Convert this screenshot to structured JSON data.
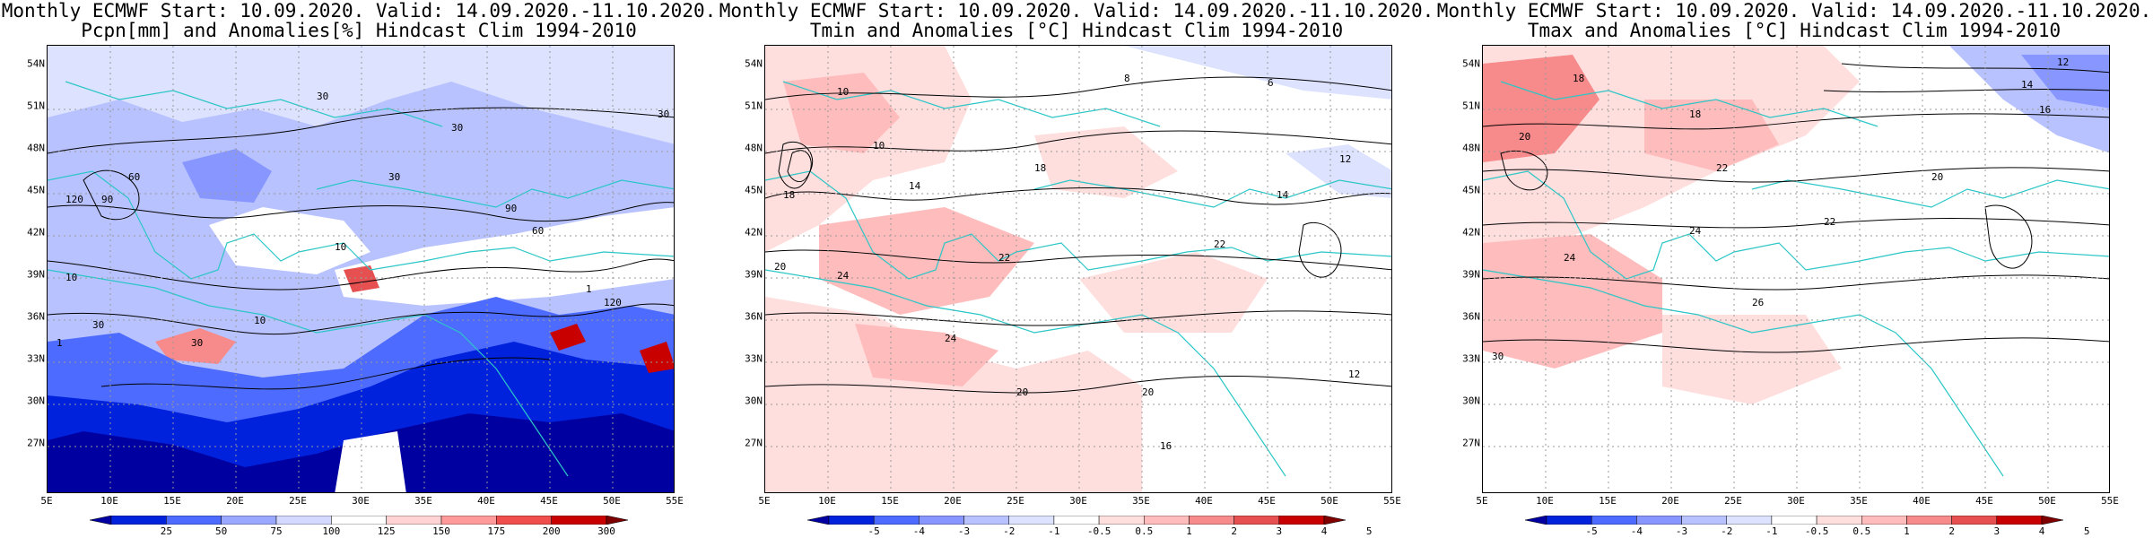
{
  "panels": [
    {
      "id": "pcpn",
      "title_line1": "Monthly ECMWF Start: 10.09.2020. Valid: 14.09.2020.-11.10.2020.",
      "title_line2": "Pcpn[mm] and Anomalies[%] Hindcast Clim 1994-2010",
      "colorbar_labels": [
        "25",
        "50",
        "75",
        "100",
        "125",
        "150",
        "175",
        "200",
        "300"
      ],
      "colorbar_colors": [
        "#0000a0",
        "#0022dd",
        "#4d6bff",
        "#9aa9ff",
        "#d3d9ff",
        "#ffffff",
        "#ffd3d3",
        "#ff9a9a",
        "#f04d4d",
        "#c80000",
        "#7d0000"
      ],
      "contour_labels": [
        "30",
        "30",
        "30",
        "60",
        "90",
        "120",
        "10",
        "1",
        "30",
        "10",
        "1",
        "90",
        "60",
        "30",
        "30",
        "10",
        "120"
      ]
    },
    {
      "id": "tmin",
      "title_line1": "Monthly ECMWF Start: 10.09.2020. Valid: 14.09.2020.-11.10.2020.",
      "title_line2": "Tmin and Anomalies [°C] Hindcast Clim 1994-2010",
      "colorbar_labels": [
        "-5",
        "-4",
        "-3",
        "-2",
        "-1",
        "-0.5",
        "0.5",
        "1",
        "2",
        "3",
        "4",
        "5"
      ],
      "colorbar_colors": [
        "#0000a0",
        "#0022dd",
        "#4d6bff",
        "#8797ff",
        "#b8c2ff",
        "#dde2ff",
        "#ffffff",
        "#ffdede",
        "#ffbcbc",
        "#f78a8a",
        "#e65050",
        "#c80000",
        "#800000"
      ],
      "contour_labels": [
        "10",
        "8",
        "6",
        "10",
        "14",
        "18",
        "12",
        "18",
        "20",
        "24",
        "22",
        "24",
        "20",
        "22",
        "20",
        "16",
        "12",
        "14"
      ]
    },
    {
      "id": "tmax",
      "title_line1": "Monthly ECMWF Start: 10.09.2020. Valid: 14.09.2020.-11.10.2020.",
      "title_line2": "Tmax and Anomalies [°C] Hindcast Clim 1994-2010",
      "colorbar_labels": [
        "-5",
        "-4",
        "-3",
        "-2",
        "-1",
        "-0.5",
        "0.5",
        "1",
        "2",
        "3",
        "4",
        "5"
      ],
      "colorbar_colors": [
        "#0000a0",
        "#0022dd",
        "#4d6bff",
        "#8797ff",
        "#b8c2ff",
        "#dde2ff",
        "#ffffff",
        "#ffdede",
        "#ffbcbc",
        "#f78a8a",
        "#e65050",
        "#c80000",
        "#800000"
      ],
      "contour_labels": [
        "12",
        "14",
        "16",
        "18",
        "18",
        "20",
        "22",
        "24",
        "24",
        "26",
        "30",
        "22",
        "20"
      ]
    }
  ],
  "lat_labels": [
    "54N",
    "51N",
    "48N",
    "45N",
    "42N",
    "39N",
    "36N",
    "33N",
    "30N",
    "27N"
  ],
  "lon_labels": [
    "5E",
    "10E",
    "15E",
    "20E",
    "25E",
    "30E",
    "35E",
    "40E",
    "45E",
    "50E",
    "55E"
  ]
}
